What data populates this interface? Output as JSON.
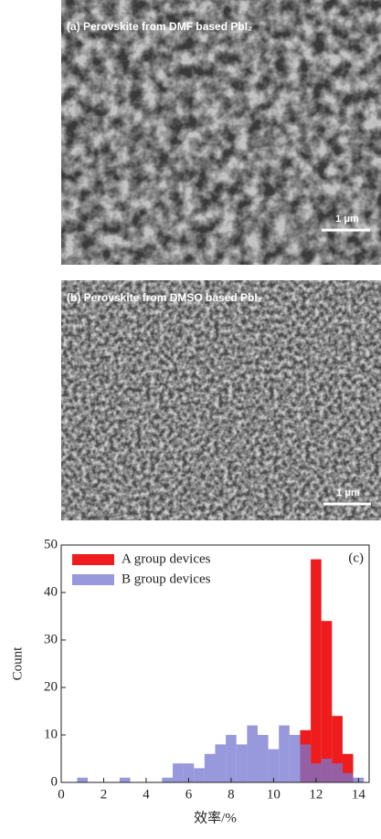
{
  "panels": [
    {
      "label": "(a) Perovskite from DMF based PbI₂",
      "scale": "1 μm"
    },
    {
      "label": "(b) Perovskite from DMSO based PbI₂",
      "scale": "1 μm"
    }
  ],
  "chart_data": {
    "type": "histogram",
    "annotation": "(c)",
    "x_label": "效率/%",
    "y_label": "Count",
    "bins": [
      0.75,
      1.25,
      1.75,
      2.25,
      2.75,
      3.25,
      3.75,
      4.25,
      4.75,
      5.25,
      5.75,
      6.25,
      6.75,
      7.25,
      7.75,
      8.25,
      8.75,
      9.25,
      9.75,
      10.25,
      10.75,
      11.25,
      11.75,
      12.25,
      12.75,
      13.25,
      13.75,
      14.25,
      14.75
    ],
    "series": [
      {
        "name": "A group devices",
        "color": "#ee1c1c",
        "values": [
          0,
          0,
          0,
          0,
          0,
          0,
          0,
          0,
          0,
          0,
          0,
          0,
          0,
          0,
          0,
          0,
          0,
          0,
          0,
          0,
          0,
          11,
          47,
          34,
          14,
          6,
          0,
          0
        ]
      },
      {
        "name": "B group devices",
        "color": "#7575d0",
        "values": [
          1,
          0,
          0,
          0,
          1,
          0,
          0,
          0,
          1,
          4,
          4,
          3,
          6,
          8,
          10,
          8,
          12,
          10,
          7,
          12,
          10,
          8,
          4,
          5,
          4,
          2,
          1,
          0
        ]
      }
    ],
    "xlim": [
      0,
      14.5
    ],
    "ylim": [
      0,
      50
    ],
    "xticks": [
      0,
      2,
      4,
      6,
      8,
      10,
      12,
      14
    ],
    "yticks": [
      0,
      10,
      20,
      30,
      40,
      50
    ],
    "legend": "upper left"
  }
}
